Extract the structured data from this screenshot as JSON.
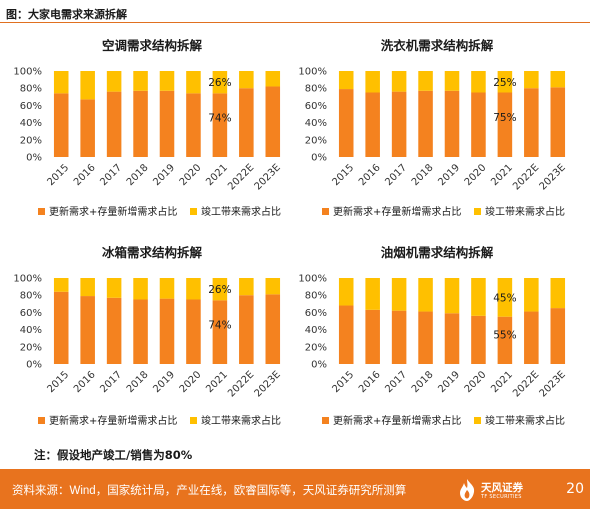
{
  "figure_title": "图：大家电需求来源拆解",
  "note": "注：假设地产竣工/销售为80%",
  "footer": {
    "source": "资料来源：Wind，国家统计局，产业在线，欧睿国际等，天风证券研究所测算",
    "brand": "天风证券",
    "brand_en": "TF SECURITIES",
    "page": "20"
  },
  "colors": {
    "replacement": "#F4821F",
    "completion": "#FFC000"
  },
  "chart_data": [
    {
      "type": "bar",
      "stacked": true,
      "title": "空调需求结构拆解",
      "categories": [
        "2015",
        "2016",
        "2017",
        "2018",
        "2019",
        "2020",
        "2021",
        "2022E",
        "2023E"
      ],
      "series": [
        {
          "name": "更新需求+存量新增需求占比",
          "values": [
            74,
            67,
            76,
            77,
            77,
            74,
            74,
            80,
            82
          ]
        },
        {
          "name": "竣工带来需求占比",
          "values": [
            26,
            33,
            24,
            23,
            23,
            26,
            26,
            20,
            18
          ]
        }
      ],
      "ylim": [
        0,
        100
      ],
      "yticks": [
        "0%",
        "20%",
        "40%",
        "60%",
        "80%",
        "100%"
      ],
      "annotations": [
        {
          "category": "2021",
          "series": 1,
          "text": "26%"
        },
        {
          "category": "2021",
          "series": 0,
          "text": "74%"
        }
      ],
      "legend": "bottom"
    },
    {
      "type": "bar",
      "stacked": true,
      "title": "洗衣机需求结构拆解",
      "categories": [
        "2015",
        "2016",
        "2017",
        "2018",
        "2019",
        "2020",
        "2021",
        "2022E",
        "2023E"
      ],
      "series": [
        {
          "name": "更新需求+存量新增需求占比",
          "values": [
            79,
            75,
            76,
            77,
            77,
            75,
            75,
            80,
            81
          ]
        },
        {
          "name": "竣工带来需求占比",
          "values": [
            21,
            25,
            24,
            23,
            23,
            25,
            25,
            20,
            19
          ]
        }
      ],
      "ylim": [
        0,
        100
      ],
      "yticks": [
        "0%",
        "20%",
        "40%",
        "60%",
        "80%",
        "100%"
      ],
      "annotations": [
        {
          "category": "2021",
          "series": 1,
          "text": "25%"
        },
        {
          "category": "2021",
          "series": 0,
          "text": "75%"
        }
      ],
      "legend": "bottom"
    },
    {
      "type": "bar",
      "stacked": true,
      "title": "冰箱需求结构拆解",
      "categories": [
        "2015",
        "2016",
        "2017",
        "2018",
        "2019",
        "2020",
        "2021",
        "2022E",
        "2023E"
      ],
      "series": [
        {
          "name": "更新需求+存量新增需求占比",
          "values": [
            84,
            79,
            77,
            75,
            76,
            75,
            74,
            80,
            81
          ]
        },
        {
          "name": "竣工带来需求占比",
          "values": [
            16,
            21,
            23,
            25,
            24,
            25,
            26,
            20,
            19
          ]
        }
      ],
      "ylim": [
        0,
        100
      ],
      "yticks": [
        "0%",
        "20%",
        "40%",
        "60%",
        "80%",
        "100%"
      ],
      "annotations": [
        {
          "category": "2021",
          "series": 1,
          "text": "26%"
        },
        {
          "category": "2021",
          "series": 0,
          "text": "74%"
        }
      ],
      "legend": "bottom"
    },
    {
      "type": "bar",
      "stacked": true,
      "title": "油烟机需求结构拆解",
      "categories": [
        "2015",
        "2016",
        "2017",
        "2018",
        "2019",
        "2020",
        "2021",
        "2022E",
        "2023E"
      ],
      "series": [
        {
          "name": "更新需求+存量新增需求占比",
          "values": [
            68,
            63,
            62,
            61,
            59,
            56,
            55,
            61,
            65
          ]
        },
        {
          "name": "竣工带来需求占比",
          "values": [
            32,
            37,
            38,
            39,
            41,
            44,
            45,
            39,
            35
          ]
        }
      ],
      "ylim": [
        0,
        100
      ],
      "yticks": [
        "0%",
        "20%",
        "40%",
        "60%",
        "80%",
        "100%"
      ],
      "annotations": [
        {
          "category": "2021",
          "series": 1,
          "text": "45%"
        },
        {
          "category": "2021",
          "series": 0,
          "text": "55%"
        }
      ],
      "legend": "bottom"
    }
  ]
}
